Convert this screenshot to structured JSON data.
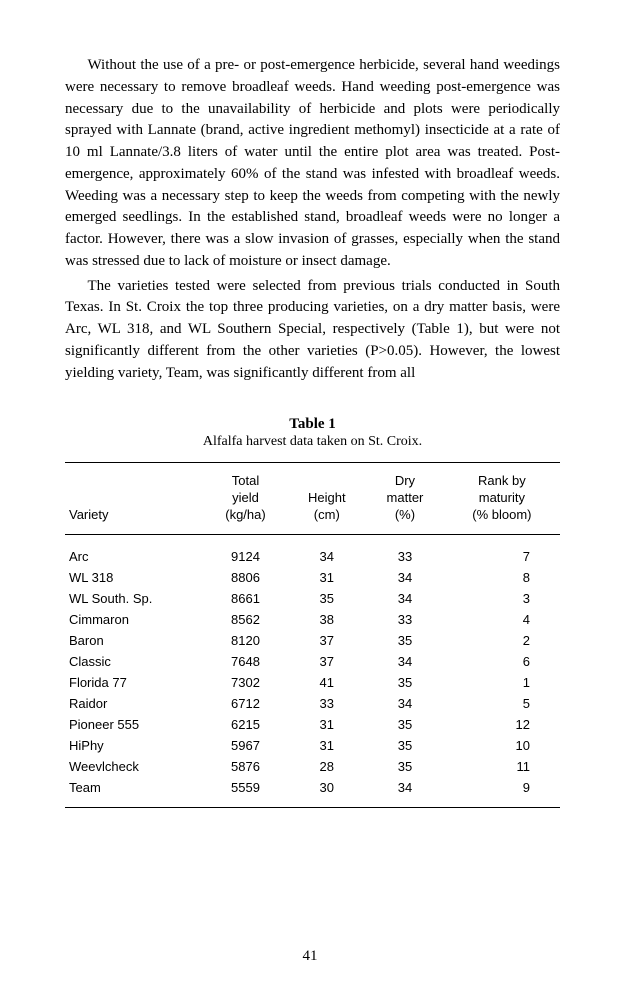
{
  "paragraphs": {
    "p1": "Without the use of a pre- or post-emergence herbicide, several hand weedings were necessary to remove broadleaf weeds. Hand weeding post-emergence was necessary due to the unavailability of herbicide and plots were periodically sprayed with Lannate (brand, active ingredient methomyl) insecticide at a rate of 10 ml Lannate/3.8 liters of water until the entire plot area was treated. Post-emergence, approximately 60% of the stand was infested with broadleaf weeds. Weeding was a necessary step to keep the weeds from competing with the newly emerged seedlings. In the established stand, broadleaf weeds were no longer a factor. However, there was a slow invasion of grasses, especially when the stand was stressed due to lack of moisture or insect damage.",
    "p2": "The varieties tested were selected from previous trials conducted in South Texas. In St. Croix the top three producing varieties, on a dry matter basis, were Arc, WL 318, and WL Southern Special, respectively (Table 1), but were not significantly different from the other varieties (P>0.05). However, the lowest yielding variety, Team, was significantly different from all"
  },
  "table": {
    "title": "Table 1",
    "caption": "Alfalfa harvest data taken on St. Croix.",
    "columns": {
      "variety": "Variety",
      "yield_l1": "Total",
      "yield_l2": "yield",
      "yield_l3": "(kg/ha)",
      "height_l1": "Height",
      "height_l2": "(cm)",
      "dry_l1": "Dry",
      "dry_l2": "matter",
      "dry_l3": "(%)",
      "rank_l1": "Rank by",
      "rank_l2": "maturity",
      "rank_l3": "(% bloom)"
    },
    "rows": [
      {
        "variety": "Arc",
        "yield": "9124",
        "height": "34",
        "dry": "33",
        "rank": "7"
      },
      {
        "variety": "WL 318",
        "yield": "8806",
        "height": "31",
        "dry": "34",
        "rank": "8"
      },
      {
        "variety": "WL South. Sp.",
        "yield": "8661",
        "height": "35",
        "dry": "34",
        "rank": "3"
      },
      {
        "variety": "Cimmaron",
        "yield": "8562",
        "height": "38",
        "dry": "33",
        "rank": "4"
      },
      {
        "variety": "Baron",
        "yield": "8120",
        "height": "37",
        "dry": "35",
        "rank": "2"
      },
      {
        "variety": "Classic",
        "yield": "7648",
        "height": "37",
        "dry": "34",
        "rank": "6"
      },
      {
        "variety": "Florida 77",
        "yield": "7302",
        "height": "41",
        "dry": "35",
        "rank": "1"
      },
      {
        "variety": "Raidor",
        "yield": "6712",
        "height": "33",
        "dry": "34",
        "rank": "5"
      },
      {
        "variety": "Pioneer 555",
        "yield": "6215",
        "height": "31",
        "dry": "35",
        "rank": "12"
      },
      {
        "variety": "HiPhy",
        "yield": "5967",
        "height": "31",
        "dry": "35",
        "rank": "10"
      },
      {
        "variety": "Weevlcheck",
        "yield": "5876",
        "height": "28",
        "dry": "35",
        "rank": "11"
      },
      {
        "variety": "Team",
        "yield": "5559",
        "height": "30",
        "dry": "34",
        "rank": "9"
      }
    ]
  },
  "page_number": "41"
}
